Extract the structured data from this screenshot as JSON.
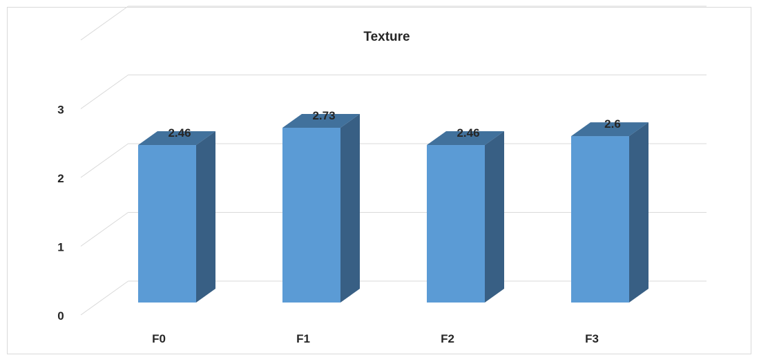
{
  "chart_data": {
    "type": "bar",
    "title": "Texture",
    "categories": [
      "F0",
      "F1",
      "F2",
      "F3"
    ],
    "series": [
      {
        "values": [
          2.46,
          2.73,
          2.46,
          2.6
        ],
        "labels": [
          "2.46",
          "2.73",
          "2.46",
          "2.6"
        ]
      }
    ],
    "ylim": [
      0,
      3
    ],
    "yticks": [
      "0",
      "1",
      "2",
      "3"
    ],
    "grid": true,
    "legend": "none",
    "style": "3d-column"
  },
  "colors": {
    "bar_front": "#5b9bd5",
    "bar_top": "#41719c",
    "bar_side": "#385f84",
    "gridline": "#d9d9d9",
    "text": "#262626"
  }
}
